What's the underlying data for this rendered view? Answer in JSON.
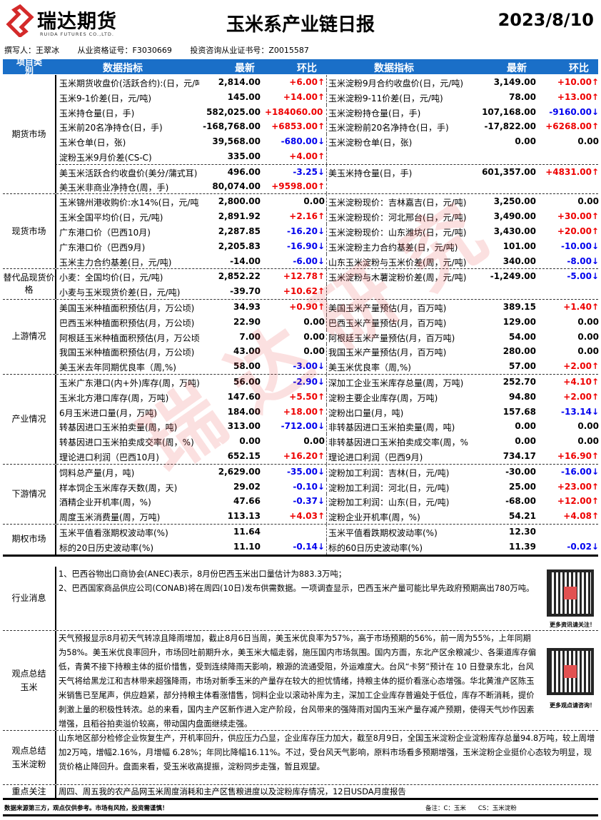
{
  "header": {
    "logo_cn": "瑞达期货",
    "logo_en": "RUIDA FUTURES CO.,LTD.",
    "title": "玉米系产业链日报",
    "date": "2023/8/10",
    "author": "撰写人：王翠冰",
    "qualification": "从业资格证号：F3030669",
    "consult": "投资咨询从业证书号：Z0015587"
  },
  "colors": {
    "header_bg": "#1a6fc8",
    "up": "#e00000",
    "down": "#0000e0",
    "logo_red": "#d42a2a"
  },
  "columns": {
    "category": "项目类别",
    "indicator": "数据指标",
    "latest": "最新",
    "change": "环比"
  },
  "sections": [
    {
      "category": "期货市场",
      "sub_after": 6,
      "rows": [
        {
          "l": [
            "玉米期货收盘价(活跃合约):(日，元/吨",
            "2,814.00",
            "+6.00",
            "up"
          ],
          "r": [
            "玉米淀粉9月合约收盘价(日，元/吨)",
            "3,149.00",
            "+10.00",
            "up"
          ]
        },
        {
          "l": [
            "玉米9-1价差(日，元/吨)",
            "145.00",
            "+14.00",
            "up"
          ],
          "r": [
            "玉米淀粉9-11价差(日，元/吨)",
            "78.00",
            "+13.00",
            "up"
          ]
        },
        {
          "l": [
            "玉米持仓量(日，手)",
            "582,025.00",
            "+184060.00",
            "up"
          ],
          "r": [
            "玉米淀粉持仓量(日，手)",
            "107,168.00",
            "-9160.00",
            "down"
          ]
        },
        {
          "l": [
            "玉米前20名净持仓(日，手)",
            "-168,768.00",
            "+6853.00",
            "up"
          ],
          "r": [
            "玉米淀粉前20名净持仓(日，手)",
            "-17,822.00",
            "+6268.00",
            "up"
          ]
        },
        {
          "l": [
            "玉米仓单(日，张)",
            "39,568.00",
            "-680.00",
            "down"
          ],
          "r": [
            "玉米淀粉仓单(日，张)",
            "0.00",
            "0.00",
            "flat"
          ]
        },
        {
          "l": [
            "淀粉玉米9月价差(CS-C)",
            "335.00",
            "+4.00",
            "up"
          ],
          "r": [
            "",
            "",
            "",
            ""
          ]
        },
        {
          "l": [
            "美玉米活跃合约收盘价(美分/蒲式耳)",
            "496.00",
            "-3.25",
            "down"
          ],
          "r": [
            "美玉米持仓量(日，手)",
            "601,357.00",
            "+4831.00",
            "up"
          ]
        },
        {
          "l": [
            "美玉米非商业净持仓(周，手)",
            "80,074.00",
            "+9598.00",
            "up"
          ],
          "r": [
            "",
            "",
            "",
            ""
          ]
        }
      ]
    },
    {
      "category": "现货市场",
      "rows": [
        {
          "l": [
            "玉米锦州港收购价:水14%(日，元/吨",
            "2,800.00",
            "0.00",
            "flat"
          ],
          "r": [
            "玉米淀粉现价：吉林嘉吉(日，元/吨)",
            "3,250.00",
            "0.00",
            "flat"
          ]
        },
        {
          "l": [
            "玉米全国平均价(日，元/吨)",
            "2,891.92",
            "+2.16",
            "up"
          ],
          "r": [
            "玉米淀粉现价：河北邢台(日，元/吨)",
            "3,490.00",
            "+30.00",
            "up"
          ]
        },
        {
          "l": [
            "广东港口价（巴西10月)",
            "2,287.85",
            "-16.20",
            "down"
          ],
          "r": [
            "玉米淀粉现价：山东潍坊(日，元/吨)",
            "3,430.00",
            "+20.00",
            "up"
          ]
        },
        {
          "l": [
            "广东港口价（巴西9月)",
            "2,205.83",
            "-16.90",
            "down"
          ],
          "r": [
            "玉米淀粉主力合约基差(日，元/吨)",
            "101.00",
            "-10.00",
            "down"
          ]
        },
        {
          "l": [
            "玉米主力合约基差(日，元/吨)",
            "-14.00",
            "-6.00",
            "down"
          ],
          "r": [
            "山东玉米淀粉与玉米价差(周，元/吨)",
            "340.00",
            "-8.00",
            "down"
          ]
        }
      ]
    },
    {
      "category": "替代品现货价格",
      "rows": [
        {
          "l": [
            "小麦：全国均价(日，元/吨)",
            "2,852.22",
            "+12.78",
            "up"
          ],
          "r": [
            "玉米淀粉与木薯淀粉价差(周，元/吨)",
            "-1,249.00",
            "-5.00",
            "down"
          ]
        },
        {
          "l": [
            "小麦与玉米现货价差(日，元/吨)",
            "-39.70",
            "+10.62",
            "up"
          ],
          "r": [
            "",
            "",
            "",
            ""
          ]
        }
      ]
    },
    {
      "category": "上游情况",
      "rows": [
        {
          "l": [
            "美国玉米种植面积预估(月，万公顷)",
            "34.93",
            "+0.90",
            "up"
          ],
          "r": [
            "美国玉米产量预估(月，百万吨)",
            "389.15",
            "+1.40",
            "up"
          ]
        },
        {
          "l": [
            "巴西玉米种植面积预估(月，万公顷)",
            "22.90",
            "0.00",
            "flat"
          ],
          "r": [
            "巴西玉米产量预估(月，百万吨)",
            "129.00",
            "0.00",
            "flat"
          ]
        },
        {
          "l": [
            "阿根廷玉米种植面积预估(月，万公顷",
            "7.00",
            "0.00",
            "flat"
          ],
          "r": [
            "阿根廷玉米产量预估(月，百万吨)",
            "54.00",
            "0.00",
            "flat"
          ]
        },
        {
          "l": [
            "我国玉米种植面积预估(月，万公顷)",
            "43.00",
            "0.00",
            "flat"
          ],
          "r": [
            "我国玉米产量预估(月，百万吨)",
            "280.00",
            "0.00",
            "flat"
          ]
        },
        {
          "l": [
            "美玉米去年同期优良率（周,%)",
            "58.00",
            "-3.00",
            "down"
          ],
          "r": [
            "美玉米优良率（周,%)",
            "57.00",
            "+2.00",
            "up"
          ]
        }
      ]
    },
    {
      "category": "产业情况",
      "rows": [
        {
          "l": [
            "玉米广东港口(内+外)库存(周，万吨)",
            "56.00",
            "-2.90",
            "down"
          ],
          "r": [
            "深加工企业玉米库存总量(周，万吨)",
            "252.70",
            "+4.10",
            "up"
          ]
        },
        {
          "l": [
            "玉米北方港口库存(周，万吨)",
            "147.60",
            "+5.50",
            "up"
          ],
          "r": [
            "淀粉主要企业库存(周，万吨)",
            "94.80",
            "+2.00",
            "up"
          ]
        },
        {
          "l": [
            "6月玉米进口量(月，万吨)",
            "184.00",
            "+18.00",
            "up"
          ],
          "r": [
            "淀粉出口量(月，吨)",
            "157.68",
            "-13.14",
            "down"
          ]
        },
        {
          "l": [
            "转基因进口玉米拍卖量(周，吨)",
            "313.00",
            "-712.00",
            "down"
          ],
          "r": [
            "非转基因进口玉米拍卖量(周，吨)",
            "0.00",
            "0.00",
            "flat"
          ]
        },
        {
          "l": [
            "转基因进口玉米拍卖成交率(周，%)",
            "0.00",
            "0.00",
            "flat"
          ],
          "r": [
            "非转基因进口玉米拍卖成交率(周，%)",
            "0.00",
            "0.00",
            "flat"
          ]
        },
        {
          "l": [
            "理论进口利润（巴西10月)",
            "652.15",
            "+16.20",
            "up"
          ],
          "r": [
            "理论进口利润（巴西9月)",
            "734.17",
            "+16.90",
            "up"
          ]
        }
      ]
    },
    {
      "category": "下游情况",
      "rows": [
        {
          "l": [
            "饲料总产量(月，吨)",
            "2,629.00",
            "-35.00",
            "down"
          ],
          "r": [
            "淀粉加工利润：吉林(日，元/吨)",
            "-30.00",
            "-16.00",
            "down"
          ]
        },
        {
          "l": [
            "样本饲企玉米库存天数(周，天)",
            "29.02",
            "-0.10",
            "down"
          ],
          "r": [
            "淀粉加工利润：河北(日，元/吨)",
            "25.00",
            "+23.00",
            "up"
          ]
        },
        {
          "l": [
            "酒精企业开机率(周，%)",
            "47.66",
            "-0.37",
            "down"
          ],
          "r": [
            "淀粉加工利润：山东(日，元/吨)",
            "-68.00",
            "+12.00",
            "up"
          ]
        },
        {
          "l": [
            "周度玉米消费量(周，万吨)",
            "113.13",
            "+4.03",
            "up"
          ],
          "r": [
            "淀粉企业开机率(周，%)",
            "54.21",
            "+4.08",
            "up"
          ]
        }
      ]
    },
    {
      "category": "期权市场",
      "rows": [
        {
          "l": [
            "玉米平值看涨期权波动率(%)",
            "11.64",
            "",
            ""
          ],
          "r": [
            "玉米平值看跌期权波动率(%)",
            "12.30",
            "",
            ""
          ]
        },
        {
          "l": [
            "标的20日历史波动率(%)",
            "11.10",
            "-0.14",
            "down"
          ],
          "r": [
            "标的60日历史波动率(%)",
            "11.39",
            "-0.02",
            "down"
          ]
        }
      ]
    }
  ],
  "news": {
    "label": "行业消息",
    "lines": [
      "1、巴西谷物出口商协会(ANEC)表示，8月份巴西玉米出口量估计为883.3万吨；",
      "2、巴西国家商品供应公司(CONAB)将在周四(10日)发布供需数据。一项调查显示，巴西玉米产量可能比早先政府预期高出780万吨。"
    ],
    "qr_caption": "更多资讯请关注！"
  },
  "corn_view": {
    "label": "观点总结玉米",
    "text": "天气预报显示8月初天气转凉且降雨增加，截止8月6日当周，美玉米优良率为57%，高于市场预期的56%，前一周为55%，上年同期为58%。美玉米优良率回升，市场回吐前期升水，美玉米大幅走弱，施压国内市场氛围。国内方面，东北产区余粮减少、各渠道库存偏低，青黄不接下持粮主体的挺价惜售，受到连续降雨天影响，粮源的流通受阻，外运难度大。台风“卡努”预计在 10 日登录东北，台风天气将给黑龙江和吉林带来超强降雨，市场对新季玉米的产量存在较大的担忧情绪，持粮主体的挺价看涨心态增强。华北黄淮产区陈玉米销售已至尾声，供应趋紧，部分持粮主体看涨惜售，饲料企业以滚动补库为主，深加工企业库存普遍处于低位，库存不断消耗，提价刺激上量的积极性转浓。总的来看，国内主产区新作进入定产阶段，台风带来的强降雨对国内玉米产量存减产预期，使得天气炒作因素增强，且稻谷拍卖溢价较高，带动国内盘面继续走强。",
    "qr_caption": "更多观点请咨询！"
  },
  "starch_view": {
    "label": "观点总结玉米淀粉",
    "text": "山东地区部分检修企业恢复生产，开机率回升，供应压力凸显，企业库存压力加大，截至8月9日，全国玉米淀粉企业淀粉库存总量94.8万吨，较上周增加2万吨，增幅2.16%，月增幅 6.28%；年同比降幅16.11%。不过，受台风天气影响，原料市场看多预期增强，玉米淀粉企业挺价心态较为明显，现货价格止降回升。盘面来看，受玉米收高提振，淀粉同步走强，暂且观望。"
  },
  "focus": {
    "label": "重点关注",
    "text": "周四、周五我的农产品网玉米周度消耗和主产区售粮进度以及淀粉库存情况，12日USDA月度报告"
  },
  "footer": {
    "disclaimer": "数据来源第三方，观点仅供参考。市场有风险，投资需谨慎！",
    "note": "备注：C：玉米　　CS：玉米淀粉"
  },
  "watermark": "瑞达研究"
}
